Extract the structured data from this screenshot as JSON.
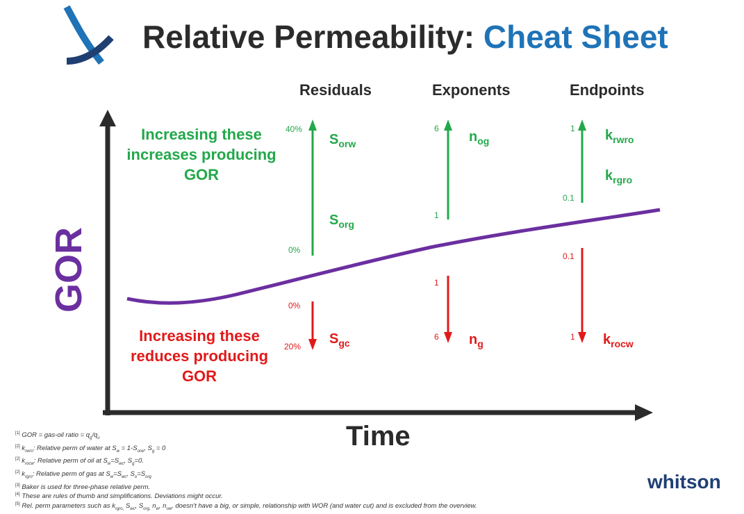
{
  "header": {
    "title_main": "Relative Permeability:",
    "title_accent": "Cheat Sheet"
  },
  "columns": {
    "residuals": "Residuals",
    "exponents": "Exponents",
    "endpoints": "Endpoints"
  },
  "blurbs": {
    "increase": "Increasing these increases producing GOR",
    "decrease": "Increasing these reduces producing GOR"
  },
  "axes": {
    "y_label": "GOR",
    "x_label": "Time"
  },
  "params": {
    "sorw": {
      "base": "S",
      "sub": "orw"
    },
    "sorg": {
      "base": "S",
      "sub": "org"
    },
    "sgc": {
      "base": "S",
      "sub": "gc"
    },
    "nog": {
      "base": "n",
      "sub": "og"
    },
    "ng": {
      "base": "n",
      "sub": "g"
    },
    "krwro": {
      "base": "k",
      "sub": "rwro"
    },
    "krgro": {
      "base": "k",
      "sub": "rgro"
    },
    "krocw": {
      "base": "k",
      "sub": "rocw"
    }
  },
  "ticks": {
    "res_up_top": "40%",
    "res_up_bottom": "0%",
    "res_down_top": "0%",
    "res_down_bottom": "20%",
    "exp_up_top": "6",
    "exp_up_bottom": "1",
    "exp_down_top": "1",
    "exp_down_bottom": "6",
    "end_up_top": "1",
    "end_up_bottom": "0.1",
    "end_down_top": "0.1",
    "end_down_bottom": "1"
  },
  "colors": {
    "green": "#22a84a",
    "red": "#e11919",
    "purple": "#6b2fa0",
    "blue": "#1f73b7",
    "dark": "#2b2b2b"
  },
  "footnotes": [
    "GOR = gas-oil ratio = q",
    "Relative perm of water at S",
    "Relative perm of oil at S",
    "Relative perm of gas at S",
    "Baker is used for three-phase relative perm.",
    "These are rules of thumb and simplifications. Deviations might occur.",
    "Rel. perm parameters such as k",
    ", doesn't have a big, or simple, relationship with WOR (and water cut) and is excluded from the overview."
  ],
  "brand": "whitson"
}
